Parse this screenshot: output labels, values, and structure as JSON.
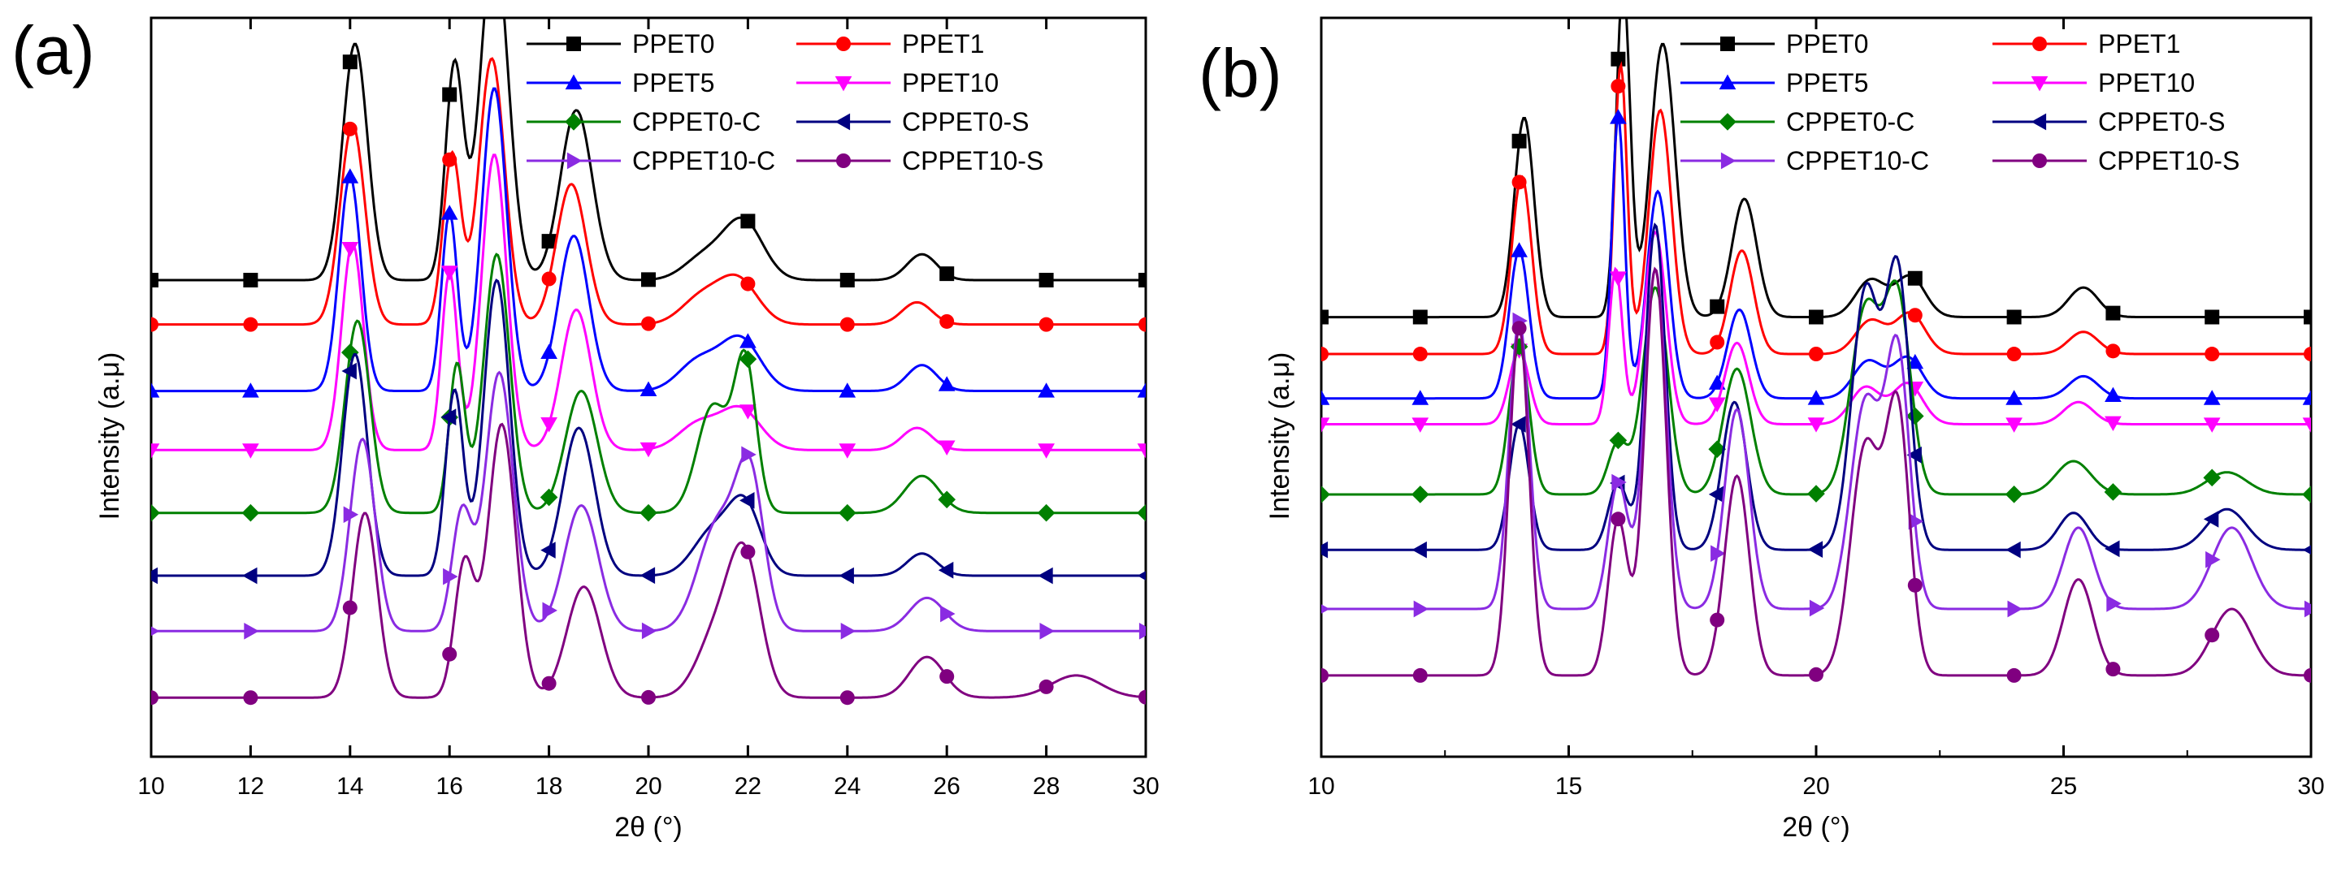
{
  "chart_data": [
    {
      "panel": "(a)",
      "type": "line",
      "xlabel": "2θ (°)",
      "ylabel": "Intensity (a.μ)",
      "xlim": [
        10,
        30
      ],
      "ylim": [
        0,
        10
      ],
      "xticks": [
        "10",
        "12",
        "14",
        "16",
        "18",
        "20",
        "22",
        "24",
        "26",
        "28",
        "30"
      ],
      "legend": [
        "PPET0",
        "PPET1",
        "PPET5",
        "PPET10",
        "CPPET0-C",
        "CPPET0-S",
        "CPPET10-C",
        "CPPET10-S"
      ],
      "series": [
        {
          "name": "PPET0",
          "baseline": 6.45,
          "peaks": [
            [
              14.1,
              3.2,
              0.25
            ],
            [
              16.1,
              2.9,
              0.18
            ],
            [
              16.9,
              4.6,
              0.28
            ],
            [
              18.55,
              2.3,
              0.32
            ],
            [
              21.1,
              0.3,
              0.4
            ],
            [
              21.9,
              0.8,
              0.4
            ],
            [
              25.5,
              0.35,
              0.3
            ]
          ]
        },
        {
          "name": "PPET1",
          "baseline": 5.85,
          "peaks": [
            [
              14.05,
              2.7,
              0.25
            ],
            [
              16.05,
              2.3,
              0.18
            ],
            [
              16.85,
              3.6,
              0.26
            ],
            [
              18.45,
              1.9,
              0.3
            ],
            [
              21.05,
              0.35,
              0.4
            ],
            [
              21.8,
              0.6,
              0.4
            ],
            [
              25.4,
              0.3,
              0.3
            ]
          ]
        },
        {
          "name": "PPET5",
          "baseline": 4.95,
          "peaks": [
            [
              14.0,
              2.9,
              0.22
            ],
            [
              16.0,
              2.4,
              0.16
            ],
            [
              16.9,
              4.1,
              0.25
            ],
            [
              18.5,
              2.1,
              0.3
            ],
            [
              21.0,
              0.4,
              0.4
            ],
            [
              21.85,
              0.7,
              0.4
            ],
            [
              25.5,
              0.35,
              0.3
            ]
          ]
        },
        {
          "name": "PPET10",
          "baseline": 4.15,
          "peaks": [
            [
              14.05,
              2.8,
              0.22
            ],
            [
              16.0,
              2.4,
              0.16
            ],
            [
              16.9,
              4.0,
              0.25
            ],
            [
              18.55,
              1.9,
              0.3
            ],
            [
              21.0,
              0.35,
              0.4
            ],
            [
              21.85,
              0.55,
              0.4
            ],
            [
              25.4,
              0.3,
              0.3
            ]
          ]
        },
        {
          "name": "CPPET0-C",
          "baseline": 3.3,
          "peaks": [
            [
              14.15,
              2.6,
              0.25
            ],
            [
              16.15,
              2.0,
              0.16
            ],
            [
              16.95,
              3.5,
              0.26
            ],
            [
              18.65,
              1.65,
              0.32
            ],
            [
              21.3,
              1.45,
              0.32
            ],
            [
              21.95,
              2.0,
              0.22
            ],
            [
              25.5,
              0.5,
              0.35
            ]
          ]
        },
        {
          "name": "CPPET0-S",
          "baseline": 2.45,
          "peaks": [
            [
              14.1,
              3.0,
              0.25
            ],
            [
              16.1,
              2.5,
              0.18
            ],
            [
              16.95,
              4.0,
              0.26
            ],
            [
              18.6,
              2.0,
              0.32
            ],
            [
              21.3,
              0.6,
              0.4
            ],
            [
              21.95,
              0.9,
              0.32
            ],
            [
              25.5,
              0.3,
              0.3
            ]
          ]
        },
        {
          "name": "CPPET10-C",
          "baseline": 1.7,
          "peaks": [
            [
              14.25,
              2.6,
              0.25
            ],
            [
              16.25,
              1.6,
              0.2
            ],
            [
              17.0,
              3.5,
              0.28
            ],
            [
              18.65,
              1.7,
              0.34
            ],
            [
              21.4,
              1.45,
              0.4
            ],
            [
              22.05,
              1.95,
              0.28
            ],
            [
              25.6,
              0.45,
              0.35
            ]
          ]
        },
        {
          "name": "CPPET10-S",
          "baseline": 0.8,
          "peaks": [
            [
              14.3,
              2.5,
              0.25
            ],
            [
              16.3,
              1.8,
              0.2
            ],
            [
              17.05,
              3.7,
              0.28
            ],
            [
              18.7,
              1.5,
              0.34
            ],
            [
              21.4,
              0.9,
              0.4
            ],
            [
              21.95,
              1.7,
              0.32
            ],
            [
              25.6,
              0.55,
              0.35
            ],
            [
              28.6,
              0.3,
              0.5
            ]
          ]
        }
      ]
    },
    {
      "panel": "(b)",
      "type": "line",
      "xlabel": "2θ (°)",
      "ylabel": "Intensity (a.μ)",
      "xlim": [
        10,
        30
      ],
      "ylim": [
        0,
        10
      ],
      "xticks": [
        "10",
        "15",
        "20",
        "25",
        "30"
      ],
      "legend": [
        "PPET0",
        "PPET1",
        "PPET5",
        "PPET10",
        "CPPET0-C",
        "CPPET0-S",
        "CPPET10-C",
        "CPPET10-S"
      ],
      "series": [
        {
          "name": "PPET0",
          "baseline": 5.95,
          "peaks": [
            [
              14.1,
              2.7,
              0.2
            ],
            [
              16.1,
              4.5,
              0.14
            ],
            [
              16.9,
              3.7,
              0.25
            ],
            [
              18.55,
              1.6,
              0.25
            ],
            [
              21.1,
              0.5,
              0.3
            ],
            [
              21.9,
              0.55,
              0.3
            ],
            [
              25.4,
              0.4,
              0.3
            ]
          ]
        },
        {
          "name": "PPET1",
          "baseline": 5.45,
          "peaks": [
            [
              14.05,
              2.4,
              0.2
            ],
            [
              16.05,
              3.9,
              0.13
            ],
            [
              16.85,
              3.3,
              0.23
            ],
            [
              18.5,
              1.4,
              0.24
            ],
            [
              21.1,
              0.45,
              0.3
            ],
            [
              21.9,
              0.55,
              0.3
            ],
            [
              25.4,
              0.3,
              0.3
            ]
          ]
        },
        {
          "name": "PPET5",
          "baseline": 4.85,
          "peaks": [
            [
              14.0,
              2.0,
              0.2
            ],
            [
              16.0,
              3.8,
              0.13
            ],
            [
              16.8,
              2.8,
              0.22
            ],
            [
              18.45,
              1.2,
              0.24
            ],
            [
              21.05,
              0.5,
              0.3
            ],
            [
              21.85,
              0.55,
              0.3
            ],
            [
              25.4,
              0.3,
              0.3
            ]
          ]
        },
        {
          "name": "PPET10",
          "baseline": 4.5,
          "peaks": [
            [
              14.0,
              1.0,
              0.2
            ],
            [
              15.95,
              2.1,
              0.14
            ],
            [
              16.75,
              2.6,
              0.22
            ],
            [
              18.4,
              1.1,
              0.24
            ],
            [
              21.0,
              0.5,
              0.3
            ],
            [
              21.85,
              0.55,
              0.3
            ],
            [
              25.3,
              0.3,
              0.3
            ]
          ]
        },
        {
          "name": "CPPET0-C",
          "baseline": 3.55,
          "peaks": [
            [
              14.0,
              2.0,
              0.2
            ],
            [
              16.0,
              0.7,
              0.2
            ],
            [
              16.75,
              2.8,
              0.25
            ],
            [
              18.4,
              1.7,
              0.28
            ],
            [
              21.0,
              2.5,
              0.3
            ],
            [
              21.65,
              2.6,
              0.26
            ],
            [
              25.2,
              0.45,
              0.35
            ],
            [
              28.3,
              0.3,
              0.4
            ]
          ]
        },
        {
          "name": "CPPET0-S",
          "baseline": 2.8,
          "peaks": [
            [
              14.0,
              1.7,
              0.2
            ],
            [
              16.0,
              0.9,
              0.2
            ],
            [
              16.75,
              4.4,
              0.2
            ],
            [
              18.35,
              2.0,
              0.25
            ],
            [
              21.0,
              3.5,
              0.28
            ],
            [
              21.65,
              3.7,
              0.24
            ],
            [
              25.2,
              0.5,
              0.3
            ],
            [
              28.3,
              0.55,
              0.4
            ]
          ]
        },
        {
          "name": "CPPET10-C",
          "baseline": 2.0,
          "peaks": [
            [
              14.0,
              3.9,
              0.2
            ],
            [
              16.0,
              1.7,
              0.2
            ],
            [
              16.75,
              4.6,
              0.22
            ],
            [
              18.4,
              2.7,
              0.25
            ],
            [
              21.0,
              2.8,
              0.3
            ],
            [
              21.65,
              3.4,
              0.24
            ],
            [
              25.3,
              1.1,
              0.3
            ],
            [
              28.4,
              1.1,
              0.4
            ]
          ]
        },
        {
          "name": "CPPET10-S",
          "baseline": 1.1,
          "peaks": [
            [
              14.0,
              4.7,
              0.2
            ],
            [
              16.0,
              2.1,
              0.2
            ],
            [
              16.75,
              5.5,
              0.22
            ],
            [
              18.4,
              2.7,
              0.25
            ],
            [
              21.0,
              3.1,
              0.3
            ],
            [
              21.65,
              3.5,
              0.24
            ],
            [
              25.3,
              1.3,
              0.3
            ],
            [
              28.4,
              0.9,
              0.4
            ]
          ]
        }
      ]
    }
  ],
  "series_styles": [
    {
      "name": "PPET0",
      "color": "#000000",
      "marker": "square"
    },
    {
      "name": "PPET1",
      "color": "#ff0000",
      "marker": "circle"
    },
    {
      "name": "PPET5",
      "color": "#0000ff",
      "marker": "triangle-up"
    },
    {
      "name": "PPET10",
      "color": "#ff00ff",
      "marker": "triangle-down"
    },
    {
      "name": "CPPET0-C",
      "color": "#008000",
      "marker": "diamond"
    },
    {
      "name": "CPPET0-S",
      "color": "#000080",
      "marker": "triangle-left"
    },
    {
      "name": "CPPET10-C",
      "color": "#8a2be2",
      "marker": "triangle-right"
    },
    {
      "name": "CPPET10-S",
      "color": "#800080",
      "marker": "hexagon"
    }
  ]
}
